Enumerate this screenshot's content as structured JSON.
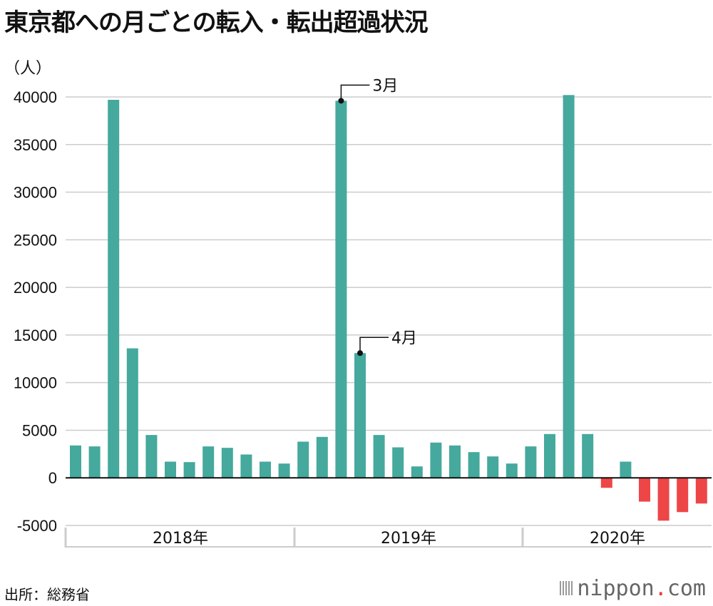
{
  "title": "東京都への月ごとの転入・転出超過状況",
  "unit": "（人）",
  "source": "出所：総務省",
  "brand": {
    "name": "nippon",
    "dot": ".",
    "suffix": "com"
  },
  "colors": {
    "positive": "#45a99d",
    "negative": "#ee4647",
    "grid": "#cccccc",
    "axis": "#111111"
  },
  "chart_data": {
    "type": "bar",
    "y_ticks": [
      40000,
      35000,
      30000,
      25000,
      20000,
      15000,
      10000,
      5000,
      0,
      -5000
    ],
    "ylim": [
      -5000,
      40000
    ],
    "grid": true,
    "groups": [
      {
        "label": "2018年",
        "values": [
          3400,
          3300,
          39700,
          13600,
          4500,
          1700,
          1650,
          3300,
          3150,
          2450,
          1700,
          1500
        ]
      },
      {
        "label": "2019年",
        "values": [
          3800,
          4300,
          39600,
          13100,
          4500,
          3200,
          1200,
          3700,
          3400,
          2700,
          2250,
          1500
        ]
      },
      {
        "label": "2020年",
        "values": [
          3300,
          4600,
          40200,
          4600,
          -1050,
          1700,
          -2500,
          -4500,
          -3600,
          -2700
        ]
      }
    ],
    "annotations": [
      {
        "text": "3月",
        "group": 1,
        "index": 2
      },
      {
        "text": "4月",
        "group": 1,
        "index": 3
      }
    ]
  }
}
